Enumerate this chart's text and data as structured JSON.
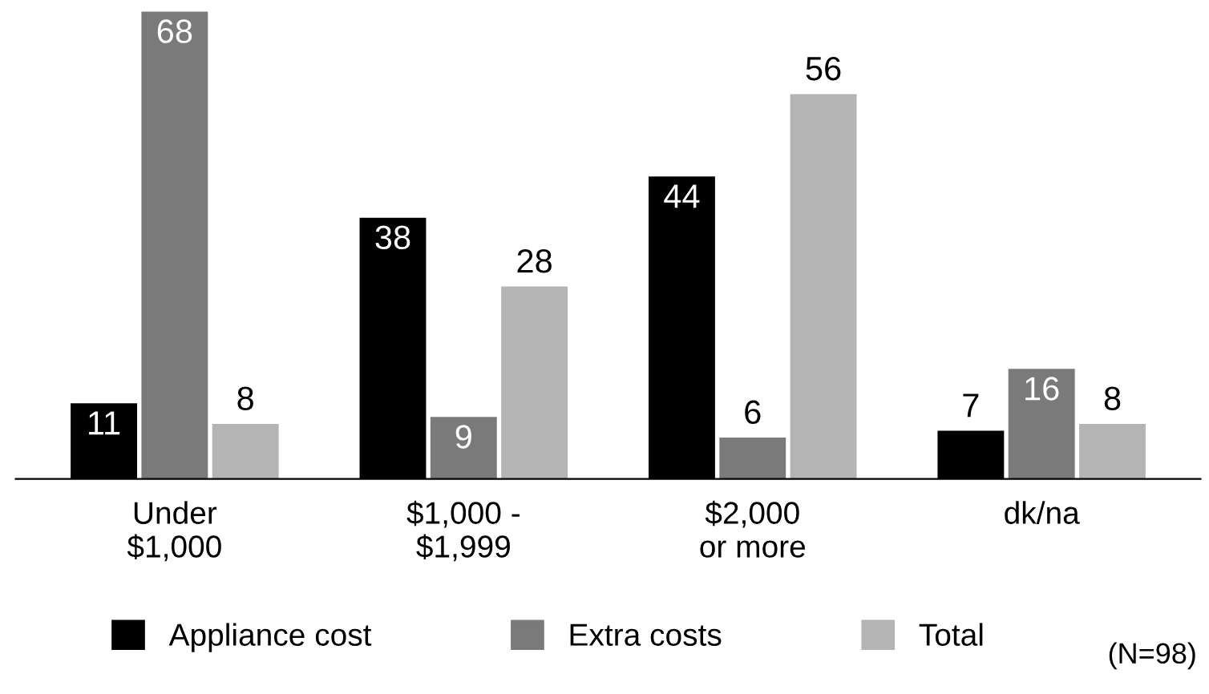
{
  "chart_data": {
    "type": "bar",
    "categories": [
      "Under\n$1,000",
      "$1,000 -\n$1,999",
      "$2,000\nor more",
      "dk/na"
    ],
    "series": [
      {
        "name": "Appliance cost",
        "color": "#000000",
        "values": [
          11,
          38,
          44,
          7
        ]
      },
      {
        "name": "Extra costs",
        "color": "#7a7a7a",
        "values": [
          68,
          9,
          6,
          16
        ]
      },
      {
        "name": "Total",
        "color": "#b4b4b4",
        "values": [
          8,
          28,
          56,
          8
        ]
      }
    ],
    "data_labels": true,
    "legend": "bottom",
    "grid": false,
    "annotations": [
      "(N=98)"
    ]
  }
}
